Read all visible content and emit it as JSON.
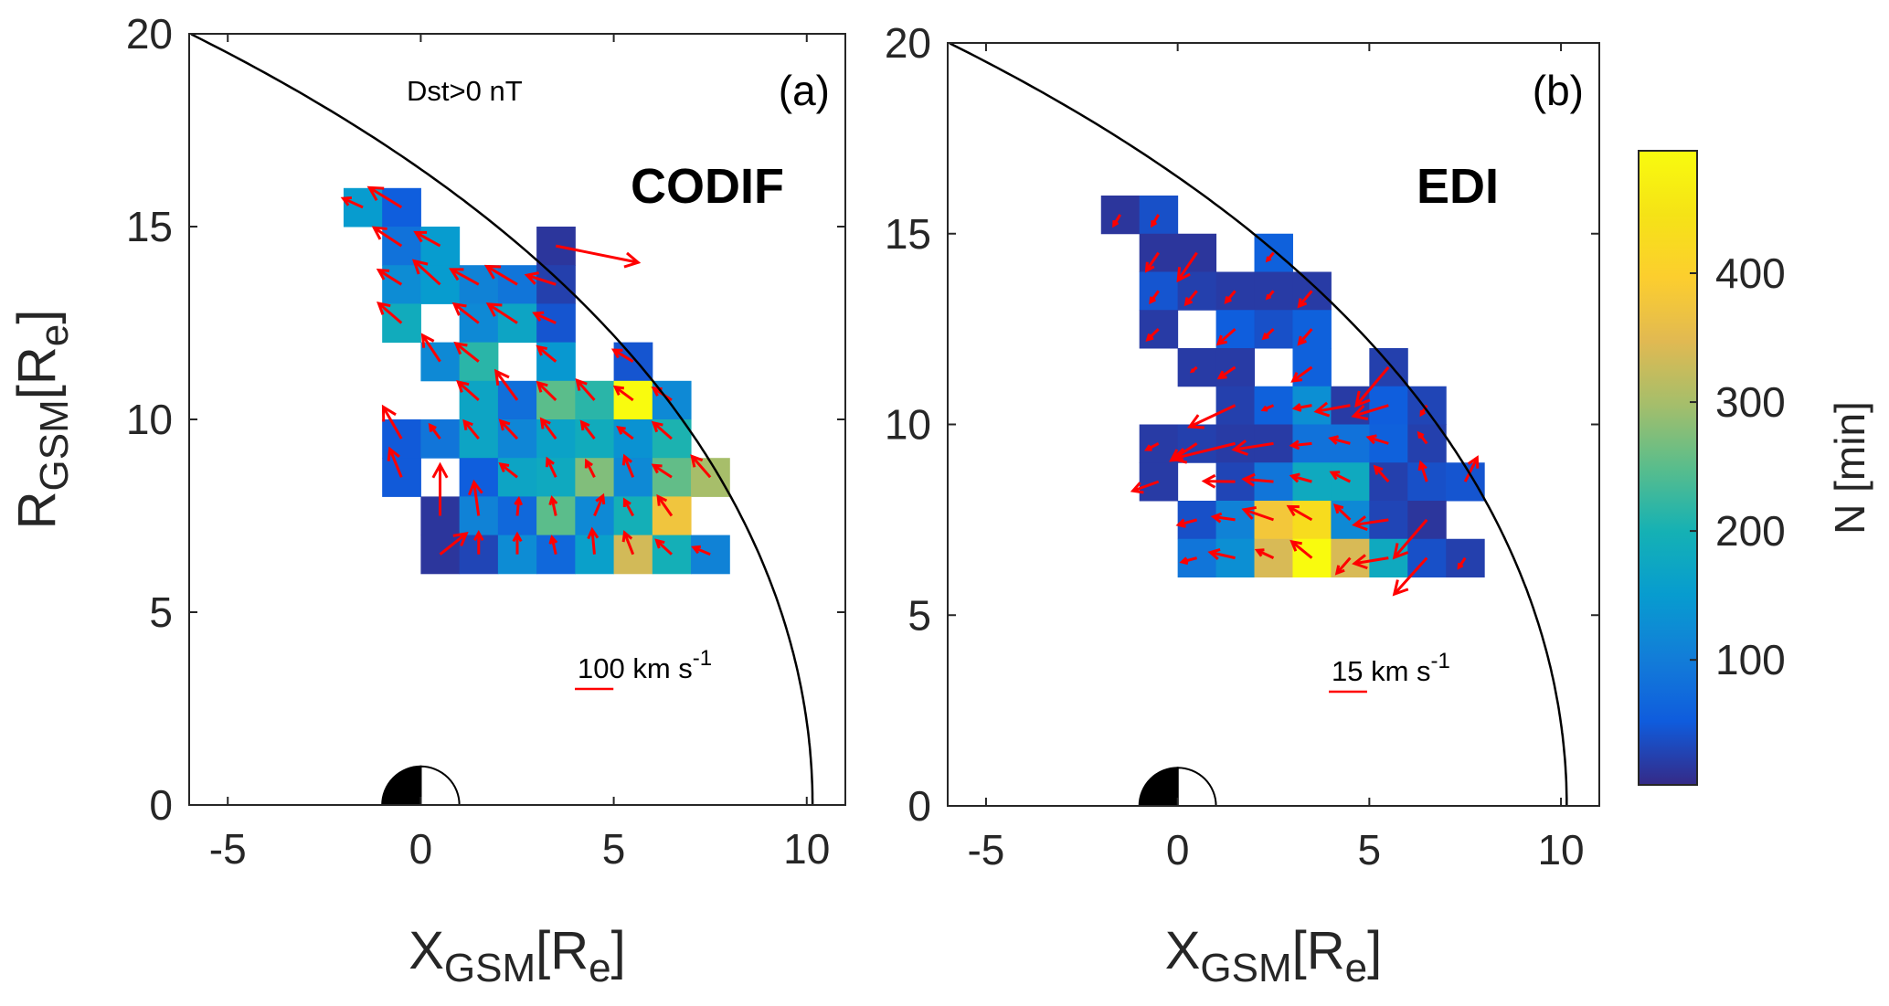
{
  "chart_data": {
    "type": "heatmap",
    "description": "Binned ion drift velocity vectors (red arrows) over occurrence counts (color) in the X_GSM-R_GSM plane",
    "colorbar": {
      "label": "N [min]",
      "range": [
        3,
        495
      ],
      "ticks": [
        100,
        200,
        300,
        400
      ],
      "tick_labels": [
        "100",
        "200",
        "300",
        "400"
      ],
      "colormap": "parula"
    },
    "shared": {
      "xlabel_main": "X",
      "xlabel_sub": "GSM",
      "xlabel_unit_open": "[R",
      "xlabel_unit_sub": "e",
      "xlabel_unit_close": "]",
      "ylabel_main": "R",
      "ylabel_sub": "GSM",
      "ylabel_unit_open": "[R",
      "ylabel_unit_sub": "e",
      "ylabel_unit_close": "]",
      "xlim": [
        -6,
        11
      ],
      "ylim": [
        0,
        20
      ],
      "xticks": [
        -5,
        0,
        5,
        10
      ],
      "xtick_labels": [
        "-5",
        "0",
        "5",
        "10"
      ],
      "yticks": [
        0,
        5,
        10,
        15,
        20
      ],
      "ytick_labels": [
        "0",
        "5",
        "10",
        "15",
        "20"
      ],
      "bin_size_re": 1,
      "magnetopause_model": {
        "r0": 10.15,
        "alpha": 0.7
      },
      "earth_radius_re": 1,
      "arrow_color": "#ff0000"
    },
    "panels": [
      {
        "id": "a",
        "tag": "(a)",
        "instrument": "CODIF",
        "condition": "Dst>0 nT",
        "scale_arrow": {
          "value_kms": 100,
          "label": "100 km s",
          "label_sup": "-1"
        },
        "cells": [
          {
            "x": -2,
            "y": 15,
            "n": 150,
            "vx": -51,
            "vy": 23
          },
          {
            "x": -1,
            "y": 15,
            "n": 55,
            "vx": -83,
            "vy": 51
          },
          {
            "x": -1,
            "y": 14,
            "n": 85,
            "vx": -71,
            "vy": 47
          },
          {
            "x": 0,
            "y": 14,
            "n": 150,
            "vx": -63,
            "vy": 35
          },
          {
            "x": 3,
            "y": 14,
            "n": 15,
            "vx": 213,
            "vy": -43
          },
          {
            "x": -1,
            "y": 13,
            "n": 125,
            "vx": -59,
            "vy": 37
          },
          {
            "x": 0,
            "y": 13,
            "n": 150,
            "vx": -67,
            "vy": 61
          },
          {
            "x": 1,
            "y": 13,
            "n": 110,
            "vx": -71,
            "vy": 39
          },
          {
            "x": 2,
            "y": 13,
            "n": 90,
            "vx": -79,
            "vy": 47
          },
          {
            "x": 3,
            "y": 13,
            "n": 25,
            "vx": -75,
            "vy": 24
          },
          {
            "x": -1,
            "y": 12,
            "n": 185,
            "vx": -59,
            "vy": 51
          },
          {
            "x": 1,
            "y": 12,
            "n": 120,
            "vx": -63,
            "vy": 49
          },
          {
            "x": 2,
            "y": 12,
            "n": 170,
            "vx": -75,
            "vy": 49
          },
          {
            "x": 3,
            "y": 12,
            "n": 45,
            "vx": -55,
            "vy": 25
          },
          {
            "x": 0,
            "y": 11,
            "n": 120,
            "vx": -45,
            "vy": 68
          },
          {
            "x": 1,
            "y": 11,
            "n": 215,
            "vx": -59,
            "vy": 47
          },
          {
            "x": 3,
            "y": 11,
            "n": 145,
            "vx": -46,
            "vy": 38
          },
          {
            "x": 5,
            "y": 11,
            "n": 45,
            "vx": -50,
            "vy": 30
          },
          {
            "x": 1,
            "y": 10,
            "n": 170,
            "vx": -53,
            "vy": 47
          },
          {
            "x": 2,
            "y": 10,
            "n": 80,
            "vx": -55,
            "vy": 75
          },
          {
            "x": 3,
            "y": 10,
            "n": 250,
            "vx": -46,
            "vy": 45
          },
          {
            "x": 4,
            "y": 10,
            "n": 215,
            "vx": -45,
            "vy": 51
          },
          {
            "x": 5,
            "y": 10,
            "n": 495,
            "vx": -46,
            "vy": 34
          },
          {
            "x": 6,
            "y": 10,
            "n": 120,
            "vx": -47,
            "vy": 31
          },
          {
            "x": -1,
            "y": 9,
            "n": 50,
            "vx": -47,
            "vy": 82
          },
          {
            "x": 0,
            "y": 9,
            "n": 90,
            "vx": -26,
            "vy": 35
          },
          {
            "x": 1,
            "y": 9,
            "n": 170,
            "vx": -37,
            "vy": 45
          },
          {
            "x": 2,
            "y": 9,
            "n": 115,
            "vx": -43,
            "vy": 46
          },
          {
            "x": 3,
            "y": 9,
            "n": 165,
            "vx": -37,
            "vy": 50
          },
          {
            "x": 4,
            "y": 9,
            "n": 185,
            "vx": -33,
            "vy": 43
          },
          {
            "x": 5,
            "y": 9,
            "n": 135,
            "vx": -38,
            "vy": 29
          },
          {
            "x": 6,
            "y": 9,
            "n": 205,
            "vx": -47,
            "vy": 41
          },
          {
            "x": -1,
            "y": 8,
            "n": 50,
            "vx": -30,
            "vy": 73
          },
          {
            "x": 1,
            "y": 8,
            "n": 55,
            "vx": 0,
            "vy": 0
          },
          {
            "x": 2,
            "y": 8,
            "n": 170,
            "vx": -43,
            "vy": 34
          },
          {
            "x": 3,
            "y": 8,
            "n": 180,
            "vx": -22,
            "vy": 47
          },
          {
            "x": 4,
            "y": 8,
            "n": 275,
            "vx": -21,
            "vy": 42
          },
          {
            "x": 5,
            "y": 8,
            "n": 120,
            "vx": -22,
            "vy": 54
          },
          {
            "x": 6,
            "y": 8,
            "n": 255,
            "vx": -47,
            "vy": 31
          },
          {
            "x": 7,
            "y": 8,
            "n": 300,
            "vx": -47,
            "vy": 54
          },
          {
            "x": 0,
            "y": 7,
            "n": 15,
            "vx": 0,
            "vy": 132
          },
          {
            "x": 1,
            "y": 7,
            "n": 110,
            "vx": -12,
            "vy": 87
          },
          {
            "x": 2,
            "y": 7,
            "n": 70,
            "vx": 4,
            "vy": 44
          },
          {
            "x": 3,
            "y": 7,
            "n": 250,
            "vx": -10,
            "vy": 46
          },
          {
            "x": 4,
            "y": 7,
            "n": 120,
            "vx": 22,
            "vy": 52
          },
          {
            "x": 5,
            "y": 7,
            "n": 195,
            "vx": -22,
            "vy": 41
          },
          {
            "x": 6,
            "y": 7,
            "n": 375,
            "vx": -35,
            "vy": 50
          },
          {
            "x": 0,
            "y": 6,
            "n": 15,
            "vx": 68,
            "vy": 54
          },
          {
            "x": 1,
            "y": 6,
            "n": 30,
            "vx": 0,
            "vy": 56
          },
          {
            "x": 2,
            "y": 6,
            "n": 125,
            "vx": 0,
            "vy": 52
          },
          {
            "x": 3,
            "y": 6,
            "n": 70,
            "vx": -10,
            "vy": 44
          },
          {
            "x": 4,
            "y": 6,
            "n": 160,
            "vx": -6,
            "vy": 64
          },
          {
            "x": 5,
            "y": 6,
            "n": 335,
            "vx": -22,
            "vy": 56
          },
          {
            "x": 6,
            "y": 6,
            "n": 195,
            "vx": -39,
            "vy": 36
          },
          {
            "x": 7,
            "y": 6,
            "n": 110,
            "vx": -43,
            "vy": 18
          }
        ]
      },
      {
        "id": "b",
        "tag": "(b)",
        "instrument": "EDI",
        "condition": "",
        "scale_arrow": {
          "value_kms": 15,
          "label": "15 km s",
          "label_sup": "-1"
        },
        "cells": [
          {
            "x": -2,
            "y": 15,
            "n": 15,
            "vx": -2.5,
            "vy": -4.2
          },
          {
            "x": -1,
            "y": 15,
            "n": 40,
            "vx": -2.5,
            "vy": -4.2
          },
          {
            "x": -1,
            "y": 14,
            "n": 15,
            "vx": -4.7,
            "vy": -7.0
          },
          {
            "x": 0,
            "y": 14,
            "n": 15,
            "vx": -7.3,
            "vy": -10.8
          },
          {
            "x": 2,
            "y": 14,
            "n": 60,
            "vx": -2.4,
            "vy": -3.0
          },
          {
            "x": -1,
            "y": 13,
            "n": 45,
            "vx": -3.1,
            "vy": -4.4
          },
          {
            "x": 0,
            "y": 13,
            "n": 25,
            "vx": -4.3,
            "vy": -5.2
          },
          {
            "x": 1,
            "y": 13,
            "n": 20,
            "vx": -3.6,
            "vy": -4.4
          },
          {
            "x": 2,
            "y": 13,
            "n": 20,
            "vx": -2.4,
            "vy": -2.8
          },
          {
            "x": 3,
            "y": 13,
            "n": 20,
            "vx": -5.0,
            "vy": -6.0
          },
          {
            "x": -1,
            "y": 12,
            "n": 20,
            "vx": -4.3,
            "vy": -4.2
          },
          {
            "x": 1,
            "y": 12,
            "n": 55,
            "vx": -6.6,
            "vy": -5.8
          },
          {
            "x": 2,
            "y": 12,
            "n": 40,
            "vx": -3.8,
            "vy": -3.6
          },
          {
            "x": 3,
            "y": 12,
            "n": 60,
            "vx": -5.0,
            "vy": -5.8
          },
          {
            "x": 0,
            "y": 11,
            "n": 20,
            "vx": -1.9,
            "vy": -1.6
          },
          {
            "x": 1,
            "y": 11,
            "n": 20,
            "vx": -6.2,
            "vy": -4.2
          },
          {
            "x": 3,
            "y": 11,
            "n": 60,
            "vx": -7.4,
            "vy": -5.4
          },
          {
            "x": 5,
            "y": 11,
            "n": 25,
            "vx": -12.6,
            "vy": -15.0
          },
          {
            "x": 1,
            "y": 10,
            "n": 25,
            "vx": -17.8,
            "vy": -8.4
          },
          {
            "x": 2,
            "y": 10,
            "n": 60,
            "vx": -4.0,
            "vy": -1.8
          },
          {
            "x": 3,
            "y": 10,
            "n": 130,
            "vx": -6.7,
            "vy": -1.2
          },
          {
            "x": 4,
            "y": 10,
            "n": 20,
            "vx": -13.2,
            "vy": -2.4
          },
          {
            "x": 5,
            "y": 10,
            "n": 55,
            "vx": -13.6,
            "vy": -4.2
          },
          {
            "x": 6,
            "y": 10,
            "n": 30,
            "vx": -2.2,
            "vy": -3.6
          },
          {
            "x": -1,
            "y": 9,
            "n": 20,
            "vx": -4.6,
            "vy": -2.4
          },
          {
            "x": 0,
            "y": 9,
            "n": 25,
            "vx": -10.0,
            "vy": -6.6
          },
          {
            "x": 1,
            "y": 9,
            "n": 20,
            "vx": -24.4,
            "vy": -6.0
          },
          {
            "x": 2,
            "y": 9,
            "n": 20,
            "vx": -15.4,
            "vy": -2.4
          },
          {
            "x": 3,
            "y": 9,
            "n": 85,
            "vx": -7.8,
            "vy": -0.8
          },
          {
            "x": 4,
            "y": 9,
            "n": 85,
            "vx": -7.6,
            "vy": 2.0
          },
          {
            "x": 5,
            "y": 9,
            "n": 60,
            "vx": -7.8,
            "vy": 2.4
          },
          {
            "x": 6,
            "y": 9,
            "n": 25,
            "vx": -3.1,
            "vy": 4.0
          },
          {
            "x": -1,
            "y": 8,
            "n": 20,
            "vx": -10.0,
            "vy": -3.6
          },
          {
            "x": 1,
            "y": 8,
            "n": 30,
            "vx": -12.1,
            "vy": 0.2
          },
          {
            "x": 2,
            "y": 8,
            "n": 90,
            "vx": -11.5,
            "vy": 1.0
          },
          {
            "x": 3,
            "y": 8,
            "n": 180,
            "vx": -7.8,
            "vy": 2.2
          },
          {
            "x": 4,
            "y": 8,
            "n": 180,
            "vx": -7.2,
            "vy": 3.6
          },
          {
            "x": 5,
            "y": 8,
            "n": 25,
            "vx": -5.2,
            "vy": 5.8
          },
          {
            "x": 6,
            "y": 8,
            "n": 40,
            "vx": -2.4,
            "vy": 7.4
          },
          {
            "x": 7,
            "y": 8,
            "n": 45,
            "vx": 4.7,
            "vy": 9.4
          },
          {
            "x": 0,
            "y": 7,
            "n": 40,
            "vx": -7.2,
            "vy": -2.0
          },
          {
            "x": 1,
            "y": 7,
            "n": 110,
            "vx": -8.5,
            "vy": 1.2
          },
          {
            "x": 2,
            "y": 7,
            "n": 380,
            "vx": -11.5,
            "vy": 4.0
          },
          {
            "x": 3,
            "y": 7,
            "n": 430,
            "vx": -9.0,
            "vy": 5.2
          },
          {
            "x": 4,
            "y": 7,
            "n": 120,
            "vx": -5.8,
            "vy": 5.6
          },
          {
            "x": 5,
            "y": 7,
            "n": 30,
            "vx": -13.3,
            "vy": -2.0
          },
          {
            "x": 6,
            "y": 7,
            "n": 15,
            "vx": -12.7,
            "vy": -14.8
          },
          {
            "x": 0,
            "y": 6,
            "n": 90,
            "vx": -5.8,
            "vy": -1.6
          },
          {
            "x": 1,
            "y": 6,
            "n": 130,
            "vx": -9.7,
            "vy": 2.2
          },
          {
            "x": 2,
            "y": 6,
            "n": 340,
            "vx": -6.4,
            "vy": 3.0
          },
          {
            "x": 3,
            "y": 6,
            "n": 495,
            "vx": -7.8,
            "vy": 6.4
          },
          {
            "x": 4,
            "y": 6,
            "n": 340,
            "vx": -5.2,
            "vy": -6.0
          },
          {
            "x": 5,
            "y": 6,
            "n": 180,
            "vx": -13.3,
            "vy": -2.2
          },
          {
            "x": 6,
            "y": 6,
            "n": 40,
            "vx": -12.7,
            "vy": -14.2
          },
          {
            "x": 7,
            "y": 6,
            "n": 25,
            "vx": -2.5,
            "vy": -3.8
          }
        ]
      }
    ]
  }
}
